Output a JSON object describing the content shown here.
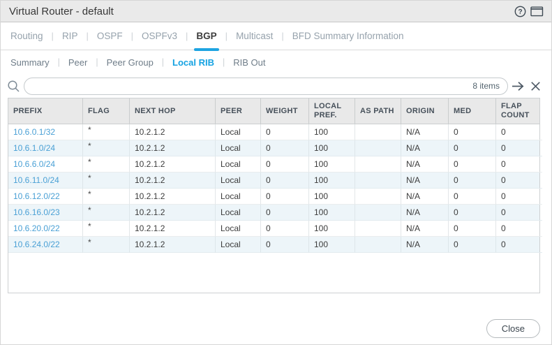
{
  "window": {
    "title": "Virtual Router - default"
  },
  "icons": {
    "help": "help-icon",
    "popout": "popout-window-icon",
    "search": "search-icon",
    "apply_filter": "arrow-right-icon",
    "clear_filter": "close-icon"
  },
  "tabs": {
    "items": [
      {
        "label": "Routing",
        "active": false
      },
      {
        "label": "RIP",
        "active": false
      },
      {
        "label": "OSPF",
        "active": false
      },
      {
        "label": "OSPFv3",
        "active": false
      },
      {
        "label": "BGP",
        "active": true
      },
      {
        "label": "Multicast",
        "active": false
      },
      {
        "label": "BFD Summary Information",
        "active": false
      }
    ]
  },
  "subtabs": {
    "items": [
      {
        "label": "Summary",
        "active": false
      },
      {
        "label": "Peer",
        "active": false
      },
      {
        "label": "Peer Group",
        "active": false
      },
      {
        "label": "Local RIB",
        "active": true
      },
      {
        "label": "RIB Out",
        "active": false
      }
    ]
  },
  "search": {
    "value": "",
    "count_label": "8 items"
  },
  "table": {
    "columns": [
      "PREFIX",
      "FLAG",
      "NEXT HOP",
      "PEER",
      "WEIGHT",
      "LOCAL PREF.",
      "AS PATH",
      "ORIGIN",
      "MED",
      "FLAP COUNT"
    ],
    "rows": [
      {
        "prefix": "10.6.0.1/32",
        "flag": "*",
        "next_hop": "10.2.1.2",
        "peer": "Local",
        "weight": "0",
        "local_pref": "100",
        "as_path": "",
        "origin": "N/A",
        "med": "0",
        "flap_count": "0"
      },
      {
        "prefix": "10.6.1.0/24",
        "flag": "*",
        "next_hop": "10.2.1.2",
        "peer": "Local",
        "weight": "0",
        "local_pref": "100",
        "as_path": "",
        "origin": "N/A",
        "med": "0",
        "flap_count": "0"
      },
      {
        "prefix": "10.6.6.0/24",
        "flag": "*",
        "next_hop": "10.2.1.2",
        "peer": "Local",
        "weight": "0",
        "local_pref": "100",
        "as_path": "",
        "origin": "N/A",
        "med": "0",
        "flap_count": "0"
      },
      {
        "prefix": "10.6.11.0/24",
        "flag": "*",
        "next_hop": "10.2.1.2",
        "peer": "Local",
        "weight": "0",
        "local_pref": "100",
        "as_path": "",
        "origin": "N/A",
        "med": "0",
        "flap_count": "0"
      },
      {
        "prefix": "10.6.12.0/22",
        "flag": "*",
        "next_hop": "10.2.1.2",
        "peer": "Local",
        "weight": "0",
        "local_pref": "100",
        "as_path": "",
        "origin": "N/A",
        "med": "0",
        "flap_count": "0"
      },
      {
        "prefix": "10.6.16.0/23",
        "flag": "*",
        "next_hop": "10.2.1.2",
        "peer": "Local",
        "weight": "0",
        "local_pref": "100",
        "as_path": "",
        "origin": "N/A",
        "med": "0",
        "flap_count": "0"
      },
      {
        "prefix": "10.6.20.0/22",
        "flag": "*",
        "next_hop": "10.2.1.2",
        "peer": "Local",
        "weight": "0",
        "local_pref": "100",
        "as_path": "",
        "origin": "N/A",
        "med": "0",
        "flap_count": "0"
      },
      {
        "prefix": "10.6.24.0/22",
        "flag": "*",
        "next_hop": "10.2.1.2",
        "peer": "Local",
        "weight": "0",
        "local_pref": "100",
        "as_path": "",
        "origin": "N/A",
        "med": "0",
        "flap_count": "0"
      }
    ]
  },
  "footer": {
    "close_label": "Close"
  },
  "colors": {
    "accent_blue": "#1ea4e1",
    "link_blue": "#4aa0d5",
    "row_alt_bg": "#edf5f9",
    "titlebar_bg": "#eaeaea",
    "header_bg": "#e9e9e9"
  }
}
